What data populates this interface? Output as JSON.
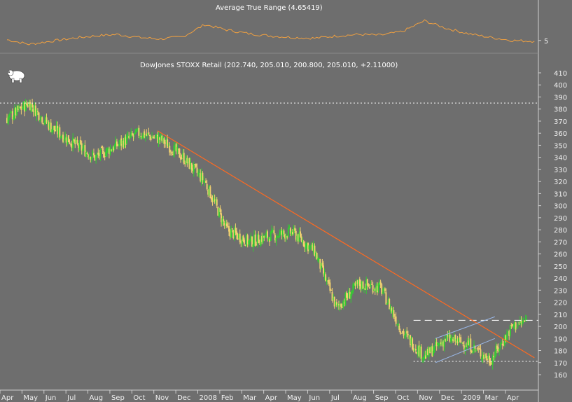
{
  "chart_data": [
    {
      "type": "line",
      "title": "Average True Range (4.65419)",
      "ytick_labels": [
        "5"
      ],
      "color": "#f0a040",
      "x_months_index": [
        0,
        1,
        2,
        3,
        4,
        5,
        6,
        7,
        8,
        9,
        10,
        11,
        12,
        13,
        14,
        15,
        16,
        17,
        18,
        19,
        20,
        21,
        22,
        23,
        24
      ],
      "values": [
        5.1,
        4.5,
        4.9,
        5.3,
        5.6,
        5.8,
        5.4,
        5.2,
        5.5,
        7.1,
        6.4,
        5.9,
        5.6,
        5.4,
        5.3,
        5.6,
        5.8,
        5.7,
        6.2,
        7.6,
        6.6,
        5.9,
        5.4,
        5.0,
        4.9
      ],
      "ylim": [
        3.5,
        8.5
      ]
    },
    {
      "type": "candlestick",
      "title": "DowJones STOXX Retail (202.740, 205.010, 200.800, 205.010, +2.11000)",
      "x_tick_labels": [
        "Apr",
        "May",
        "Jun",
        "Jul",
        "Aug",
        "Sep",
        "Oct",
        "Nov",
        "Dec",
        "2008",
        "Feb",
        "Mar",
        "Apr",
        "May",
        "Jun",
        "Jul",
        "Aug",
        "Sep",
        "Oct",
        "Nov",
        "Dec",
        "2009",
        "Mar",
        "Apr"
      ],
      "y_tick_labels": [
        "160",
        "170",
        "180",
        "190",
        "200",
        "210",
        "220",
        "230",
        "240",
        "250",
        "260",
        "270",
        "280",
        "290",
        "300",
        "310",
        "320",
        "330",
        "340",
        "350",
        "360",
        "370",
        "380",
        "390",
        "400",
        "410"
      ],
      "ylim": [
        155,
        415
      ],
      "up_color": "#33cc33",
      "down_color": "#f0d070",
      "closes": [
        [
          0,
          372
        ],
        [
          1,
          385
        ],
        [
          2,
          365
        ],
        [
          3,
          352
        ],
        [
          4,
          340
        ],
        [
          5,
          350
        ],
        [
          6,
          360
        ],
        [
          7,
          355
        ],
        [
          8,
          340
        ],
        [
          9,
          320
        ],
        [
          10,
          280
        ],
        [
          11,
          270
        ],
        [
          12,
          275
        ],
        [
          13,
          278
        ],
        [
          14,
          262
        ],
        [
          15,
          215
        ],
        [
          16,
          235
        ],
        [
          17,
          232
        ],
        [
          18,
          195
        ],
        [
          19,
          175
        ],
        [
          20,
          190
        ],
        [
          21,
          185
        ],
        [
          22,
          172
        ],
        [
          23,
          200
        ],
        [
          23.7,
          205
        ]
      ],
      "trendline": {
        "color": "#ff6a20",
        "from": [
          6.85,
          362
        ],
        "to": [
          24,
          174
        ]
      },
      "channel": {
        "color": "#9ab8e8",
        "upper": [
          [
            19.5,
            190
          ],
          [
            22.2,
            208
          ]
        ],
        "lower": [
          [
            19.5,
            170
          ],
          [
            22.2,
            190
          ]
        ]
      },
      "levels": [
        {
          "value": 385,
          "style": "dotted",
          "color": "#ffffff"
        },
        {
          "value": 205,
          "style": "dashed",
          "color": "#ffffff",
          "from_month": 18.5
        },
        {
          "value": 171,
          "style": "dotted",
          "color": "#ffffff",
          "from_month": 18.5
        }
      ]
    }
  ]
}
